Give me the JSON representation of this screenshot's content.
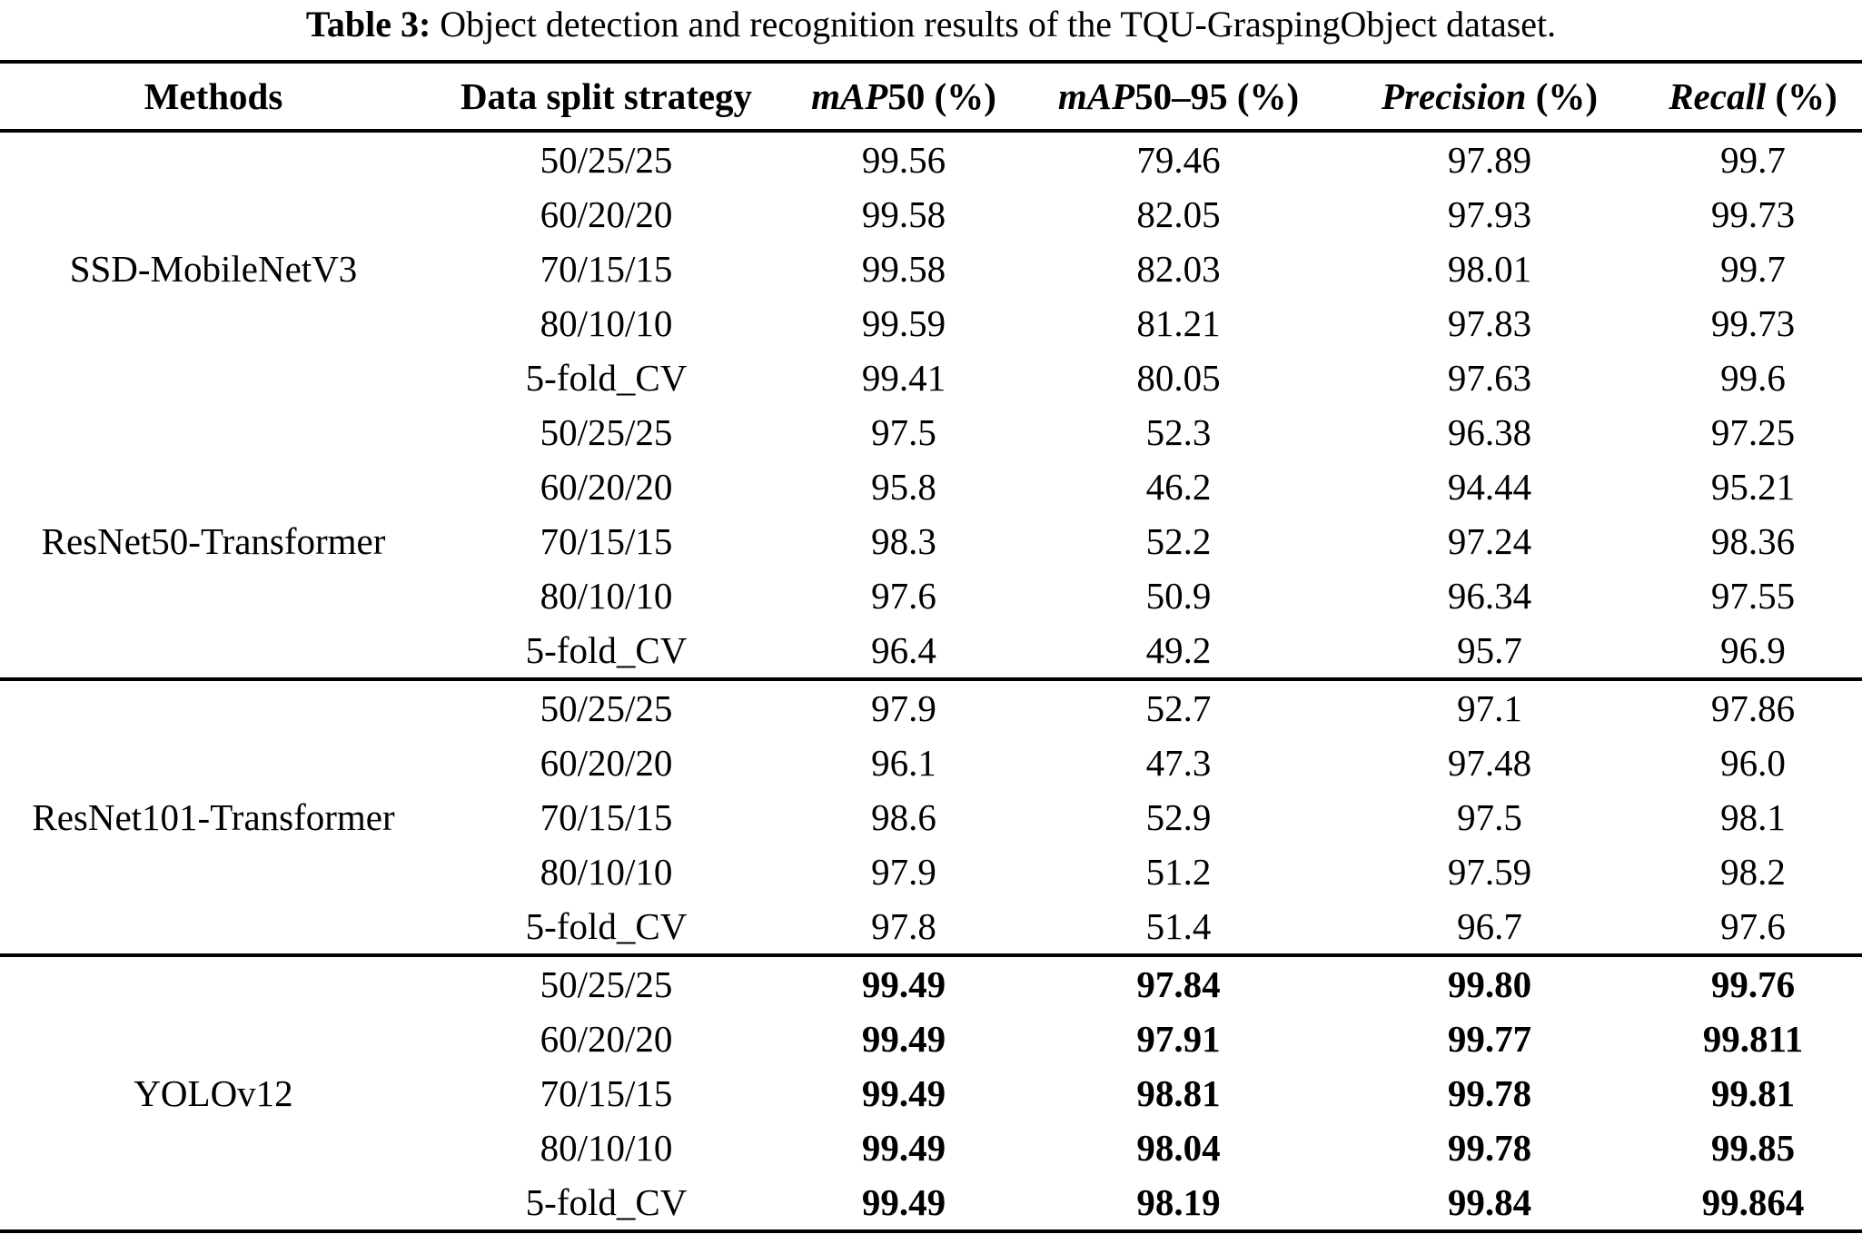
{
  "caption": {
    "label": "Table 3:",
    "text": "Object detection and recognition results of the TQU-GraspingObject dataset."
  },
  "table": {
    "headers": [
      {
        "em": "",
        "rest": "Methods"
      },
      {
        "em": "",
        "rest": "Data split strategy"
      },
      {
        "em": "mAP",
        "rest": "50 (%)"
      },
      {
        "em": "mAP",
        "rest": "50–95 (%)"
      },
      {
        "em": "Precision",
        "rest": " (%)"
      },
      {
        "em": "Recall",
        "rest": " (%)"
      }
    ],
    "groups": [
      {
        "method": "SSD-MobileNetV3",
        "rows": [
          {
            "split": "50/25/25",
            "map50": "99.56",
            "map50_95": "79.46",
            "precision": "97.89",
            "recall": "99.7"
          },
          {
            "split": "60/20/20",
            "map50": "99.58",
            "map50_95": "82.05",
            "precision": "97.93",
            "recall": "99.73"
          },
          {
            "split": "70/15/15",
            "map50": "99.58",
            "map50_95": "82.03",
            "precision": "98.01",
            "recall": "99.7"
          },
          {
            "split": "80/10/10",
            "map50": "99.59",
            "map50_95": "81.21",
            "precision": "97.83",
            "recall": "99.73"
          },
          {
            "split": "5-fold_CV",
            "map50": "99.41",
            "map50_95": "80.05",
            "precision": "97.63",
            "recall": "99.6"
          }
        ]
      },
      {
        "method": "ResNet50-Transformer",
        "rows": [
          {
            "split": "50/25/25",
            "map50": "97.5",
            "map50_95": "52.3",
            "precision": "96.38",
            "recall": "97.25"
          },
          {
            "split": "60/20/20",
            "map50": "95.8",
            "map50_95": "46.2",
            "precision": "94.44",
            "recall": "95.21"
          },
          {
            "split": "70/15/15",
            "map50": "98.3",
            "map50_95": "52.2",
            "precision": "97.24",
            "recall": "98.36"
          },
          {
            "split": "80/10/10",
            "map50": "97.6",
            "map50_95": "50.9",
            "precision": "96.34",
            "recall": "97.55"
          },
          {
            "split": "5-fold_CV",
            "map50": "96.4",
            "map50_95": "49.2",
            "precision": "95.7",
            "recall": "96.9"
          }
        ]
      },
      {
        "method": "ResNet101-Transformer",
        "rows": [
          {
            "split": "50/25/25",
            "map50": "97.9",
            "map50_95": "52.7",
            "precision": "97.1",
            "recall": "97.86"
          },
          {
            "split": "60/20/20",
            "map50": "96.1",
            "map50_95": "47.3",
            "precision": "97.48",
            "recall": "96.0"
          },
          {
            "split": "70/15/15",
            "map50": "98.6",
            "map50_95": "52.9",
            "precision": "97.5",
            "recall": "98.1"
          },
          {
            "split": "80/10/10",
            "map50": "97.9",
            "map50_95": "51.2",
            "precision": "97.59",
            "recall": "98.2"
          },
          {
            "split": "5-fold_CV",
            "map50": "97.8",
            "map50_95": "51.4",
            "precision": "96.7",
            "recall": "97.6"
          }
        ]
      },
      {
        "method": "YOLOv12",
        "rows": [
          {
            "split": "50/25/25",
            "map50": "99.49",
            "map50_95": "97.84",
            "precision": "99.80",
            "recall": "99.76"
          },
          {
            "split": "60/20/20",
            "map50": "99.49",
            "map50_95": "97.91",
            "precision": "99.77",
            "recall": "99.811"
          },
          {
            "split": "70/15/15",
            "map50": "99.49",
            "map50_95": "98.81",
            "precision": "99.78",
            "recall": "99.81"
          },
          {
            "split": "80/10/10",
            "map50": "99.49",
            "map50_95": "98.04",
            "precision": "99.78",
            "recall": "99.85"
          },
          {
            "split": "5-fold_CV",
            "map50": "99.49",
            "map50_95": "98.19",
            "precision": "99.84",
            "recall": "99.864"
          }
        ]
      }
    ]
  }
}
